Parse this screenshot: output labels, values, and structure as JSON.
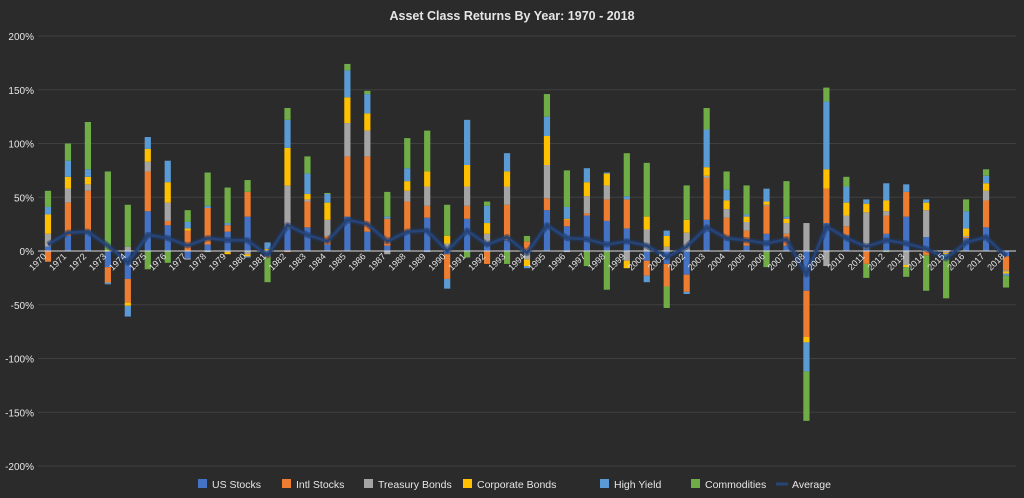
{
  "chart_data": {
    "type": "bar",
    "stacked": true,
    "title": "Asset Class Returns By Year: 1970 - 2018",
    "xlabel": "",
    "ylabel": "",
    "ylim": [
      -200,
      200
    ],
    "y_ticks": [
      "200%",
      "150%",
      "100%",
      "50%",
      "0%",
      "-50%",
      "-100%",
      "-150%",
      "-200%"
    ],
    "y_tick_values": [
      200,
      150,
      100,
      50,
      0,
      -50,
      -100,
      -150,
      -200
    ],
    "grid": true,
    "legend": "bottom",
    "colors": {
      "US Stocks": "#4472c4",
      "Intl Stocks": "#ed7d31",
      "Treasury Bonds": "#a5a5a5",
      "Corporate Bonds": "#ffc000",
      "High Yield": "#5b9bd5",
      "Commodities": "#70ad47",
      "Average": "#264478",
      "background": "#2b2b2b",
      "grid": "#404040",
      "text": "#e6e6e6"
    },
    "categories": [
      "1970",
      "1971",
      "1972",
      "1973",
      "1974",
      "1975",
      "1976",
      "1977",
      "1978",
      "1979",
      "1980",
      "1981",
      "1982",
      "1983",
      "1984",
      "1985",
      "1986",
      "1987",
      "1988",
      "1989",
      "1990",
      "1991",
      "1992",
      "1993",
      "1994",
      "1995",
      "1996",
      "1997",
      "1998",
      "1999",
      "2000",
      "2001",
      "2002",
      "2003",
      "2004",
      "2005",
      "2006",
      "2007",
      "2008",
      "2009",
      "2010",
      "2011",
      "2012",
      "2013",
      "2014",
      "2015",
      "2016",
      "2017",
      "2018"
    ],
    "series": [
      {
        "name": "US Stocks",
        "values": [
          4,
          14,
          19,
          -15,
          -26,
          37,
          24,
          -7,
          6,
          18,
          32,
          -5,
          21,
          22,
          6,
          32,
          18,
          5,
          17,
          31,
          -3,
          30,
          8,
          10,
          1,
          38,
          23,
          33,
          28,
          21,
          -9,
          -12,
          -22,
          29,
          11,
          5,
          16,
          5,
          -37,
          26,
          15,
          2,
          16,
          32,
          13,
          1,
          12,
          22,
          -5
        ]
      },
      {
        "name": "Intl Stocks",
        "values": [
          -10,
          31,
          37,
          -14,
          -22,
          37,
          4,
          19,
          34,
          6,
          23,
          -1,
          -1,
          24,
          8,
          56,
          70,
          25,
          29,
          11,
          -23,
          12,
          -12,
          33,
          8,
          11,
          6,
          2,
          20,
          27,
          -14,
          -21,
          -16,
          39,
          20,
          14,
          26,
          11,
          -43,
          32,
          8,
          -12,
          17,
          23,
          -4,
          -1,
          1,
          25,
          -13
        ]
      },
      {
        "name": "Treasury Bonds",
        "values": [
          12,
          13,
          6,
          -1,
          4,
          9,
          17,
          -1,
          -1,
          -1,
          -3,
          1,
          40,
          2,
          15,
          31,
          24,
          -3,
          10,
          18,
          7,
          18,
          8,
          17,
          -8,
          31,
          -1,
          16,
          13,
          -9,
          20,
          4,
          17,
          2,
          8,
          8,
          1,
          10,
          26,
          -14,
          10,
          34,
          4,
          -13,
          25,
          -1,
          1,
          9,
          -1
        ]
      },
      {
        "name": "Corporate Bonds",
        "values": [
          18,
          11,
          7,
          1,
          -3,
          12,
          19,
          2,
          0,
          -2,
          -2,
          1,
          35,
          5,
          16,
          24,
          16,
          0,
          9,
          14,
          7,
          20,
          10,
          14,
          -6,
          27,
          1,
          13,
          11,
          -7,
          12,
          10,
          12,
          8,
          8,
          5,
          3,
          4,
          -5,
          18,
          12,
          8,
          10,
          -2,
          7,
          -1,
          7,
          7,
          -2
        ]
      },
      {
        "name": "High Yield",
        "values": [
          7,
          15,
          7,
          -1,
          -10,
          11,
          20,
          6,
          2,
          2,
          -1,
          6,
          26,
          19,
          8,
          25,
          18,
          2,
          12,
          -1,
          -9,
          42,
          16,
          17,
          -2,
          18,
          11,
          13,
          1,
          3,
          -6,
          5,
          -2,
          35,
          10,
          2,
          12,
          2,
          -27,
          63,
          15,
          4,
          16,
          7,
          3,
          -4,
          16,
          7,
          -2
        ]
      },
      {
        "name": "Commodities",
        "values": [
          15,
          16,
          44,
          73,
          39,
          -17,
          -11,
          11,
          31,
          33,
          11,
          -23,
          11,
          16,
          1,
          6,
          3,
          23,
          28,
          38,
          29,
          -6,
          4,
          -12,
          5,
          21,
          34,
          -14,
          -36,
          40,
          50,
          -20,
          32,
          20,
          17,
          27,
          -15,
          33,
          -46,
          13,
          9,
          -13,
          -1,
          -9,
          -33,
          -37,
          11,
          6,
          -11
        ]
      },
      {
        "name": "Average",
        "values": [
          6,
          17,
          18,
          5,
          -11,
          15,
          12,
          5,
          12,
          10,
          10,
          -4,
          24,
          15,
          9,
          29,
          25,
          9,
          18,
          19,
          0,
          19,
          6,
          13,
          -2,
          24,
          12,
          11,
          6,
          9,
          5,
          -6,
          4,
          22,
          12,
          10,
          7,
          11,
          -22,
          23,
          12,
          4,
          10,
          7,
          2,
          -7,
          8,
          13,
          -5
        ]
      }
    ]
  }
}
